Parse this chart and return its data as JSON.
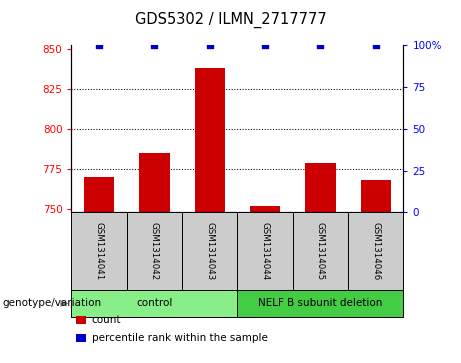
{
  "title": "GDS5302 / ILMN_2717777",
  "samples": [
    "GSM1314041",
    "GSM1314042",
    "GSM1314043",
    "GSM1314044",
    "GSM1314045",
    "GSM1314046"
  ],
  "counts": [
    770,
    785,
    838,
    752,
    779,
    768
  ],
  "percentiles": [
    100,
    100,
    100,
    100,
    100,
    100
  ],
  "ylim_left": [
    748,
    852
  ],
  "ylim_right": [
    0,
    100
  ],
  "yticks_left": [
    750,
    775,
    800,
    825,
    850
  ],
  "yticks_right": [
    0,
    25,
    50,
    75,
    100
  ],
  "bar_color": "#cc0000",
  "dot_color": "#0000cc",
  "grid_ticks": [
    775,
    800,
    825
  ],
  "groups": [
    {
      "label": "control",
      "indices": [
        0,
        1,
        2
      ],
      "color": "#88ee88"
    },
    {
      "label": "NELF B subunit deletion",
      "indices": [
        3,
        4,
        5
      ],
      "color": "#44cc44"
    }
  ],
  "legend_items": [
    {
      "color": "#cc0000",
      "label": "count"
    },
    {
      "color": "#0000cc",
      "label": "percentile rank within the sample"
    }
  ],
  "genotype_label": "genotype/variation",
  "bar_width": 0.55,
  "background_color": "#ffffff",
  "sample_box_color": "#cccccc"
}
